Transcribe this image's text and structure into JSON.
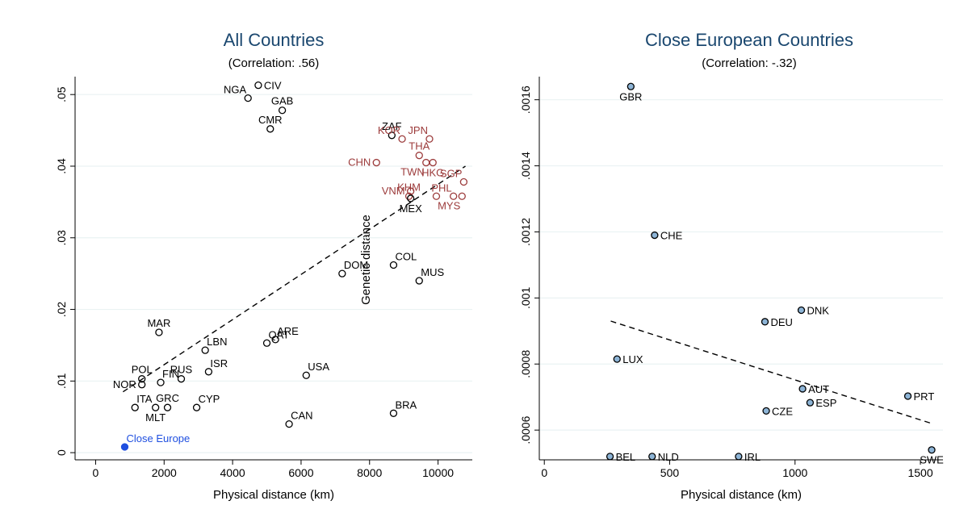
{
  "chart_data": [
    {
      "type": "scatter",
      "title": "All Countries",
      "subtitle": "(Correlation: .56)",
      "xlabel": "Physical distance (km)",
      "ylabel": "Genetic distance",
      "xlim": [
        -600,
        11000
      ],
      "ylim": [
        -0.001,
        0.0525
      ],
      "xticks": [
        "0",
        "2000",
        "4000",
        "6000",
        "8000",
        "10000"
      ],
      "xtick_values": [
        0,
        2000,
        4000,
        6000,
        8000,
        10000
      ],
      "yticks": [
        "0",
        ".01",
        ".02",
        ".03",
        ".04",
        ".05"
      ],
      "ytick_values": [
        0,
        0.01,
        0.02,
        0.03,
        0.04,
        0.05
      ],
      "grid": "horizontal",
      "colors": {
        "default": "#000000",
        "asia": "#9c3b3b",
        "highlight": "#1f4fe0"
      },
      "fit_line": {
        "x": [
          800,
          10800
        ],
        "y": [
          0.0085,
          0.04
        ]
      },
      "points": [
        {
          "label": "NGA",
          "x": 4450,
          "y": 0.0495,
          "group": "default",
          "anchor": "above-left"
        },
        {
          "label": "CIV",
          "x": 4750,
          "y": 0.0513,
          "group": "default",
          "anchor": "right"
        },
        {
          "label": "GAB",
          "x": 5450,
          "y": 0.0478,
          "group": "default",
          "anchor": "above"
        },
        {
          "label": "CMR",
          "x": 5100,
          "y": 0.0452,
          "group": "default",
          "anchor": "above"
        },
        {
          "label": "ZAF",
          "x": 8650,
          "y": 0.0443,
          "group": "default",
          "anchor": "above"
        },
        {
          "label": "KOR",
          "x": 8950,
          "y": 0.0438,
          "group": "asia",
          "anchor": "above-left"
        },
        {
          "label": "JPN",
          "x": 9750,
          "y": 0.0438,
          "group": "asia",
          "anchor": "above-left"
        },
        {
          "label": "THA",
          "x": 9450,
          "y": 0.0415,
          "group": "asia",
          "anchor": "above"
        },
        {
          "label": "CHN",
          "x": 8200,
          "y": 0.0405,
          "group": "asia",
          "anchor": "left"
        },
        {
          "label": "TWN",
          "x": 9650,
          "y": 0.0405,
          "group": "asia",
          "anchor": "below-left"
        },
        {
          "label": "HKG",
          "x": 9850,
          "y": 0.0405,
          "group": "asia",
          "anchor": "below"
        },
        {
          "label": "SGP",
          "x": 10750,
          "y": 0.0378,
          "group": "asia",
          "anchor": "above-left"
        },
        {
          "label": "VNM",
          "x": 9200,
          "y": 0.0365,
          "group": "asia",
          "anchor": "left"
        },
        {
          "label": "KHM",
          "x": 9150,
          "y": 0.0358,
          "group": "asia",
          "anchor": "above"
        },
        {
          "label": "PHL",
          "x": 10450,
          "y": 0.0358,
          "group": "asia",
          "anchor": "above-left"
        },
        {
          "label": "MYS",
          "x": 10700,
          "y": 0.0358,
          "group": "asia",
          "anchor": "below-left"
        },
        {
          "label": "MYS",
          "x": 9950,
          "y": 0.0358,
          "group": "asia",
          "anchor": "none"
        },
        {
          "label": "MEX",
          "x": 9200,
          "y": 0.0355,
          "group": "default",
          "anchor": "below"
        },
        {
          "label": "COL",
          "x": 8700,
          "y": 0.0262,
          "group": "default",
          "anchor": "above-right"
        },
        {
          "label": "MUS",
          "x": 9450,
          "y": 0.024,
          "group": "default",
          "anchor": "above-right"
        },
        {
          "label": "DOM",
          "x": 7200,
          "y": 0.025,
          "group": "default",
          "anchor": "above-right"
        },
        {
          "label": "MAR",
          "x": 1850,
          "y": 0.0168,
          "group": "default",
          "anchor": "above"
        },
        {
          "label": "ARE",
          "x": 5250,
          "y": 0.0158,
          "group": "default",
          "anchor": "above-right"
        },
        {
          "label": "QAT",
          "x": 5000,
          "y": 0.0153,
          "group": "default",
          "anchor": "above-right"
        },
        {
          "label": "LBN",
          "x": 3200,
          "y": 0.0143,
          "group": "default",
          "anchor": "above-right"
        },
        {
          "label": "ISR",
          "x": 3300,
          "y": 0.0113,
          "group": "default",
          "anchor": "above-right"
        },
        {
          "label": "RUS",
          "x": 2500,
          "y": 0.0103,
          "group": "default",
          "anchor": "above"
        },
        {
          "label": "FIN",
          "x": 1900,
          "y": 0.0098,
          "group": "default",
          "anchor": "above-right"
        },
        {
          "label": "POL",
          "x": 1350,
          "y": 0.0103,
          "group": "default",
          "anchor": "above"
        },
        {
          "label": "NOR",
          "x": 1350,
          "y": 0.0095,
          "group": "default",
          "anchor": "left"
        },
        {
          "label": "USA",
          "x": 6150,
          "y": 0.0108,
          "group": "default",
          "anchor": "above-right"
        },
        {
          "label": "ITA",
          "x": 1150,
          "y": 0.0063,
          "group": "default",
          "anchor": "above-right"
        },
        {
          "label": "GRC",
          "x": 2100,
          "y": 0.0063,
          "group": "default",
          "anchor": "above"
        },
        {
          "label": "CYP",
          "x": 2950,
          "y": 0.0063,
          "group": "default",
          "anchor": "above-right"
        },
        {
          "label": "MLT",
          "x": 1750,
          "y": 0.0063,
          "group": "default",
          "anchor": "below"
        },
        {
          "label": "BRA",
          "x": 8700,
          "y": 0.0055,
          "group": "default",
          "anchor": "above-right"
        },
        {
          "label": "CAN",
          "x": 5650,
          "y": 0.004,
          "group": "default",
          "anchor": "above-right"
        },
        {
          "label": "Close Europe",
          "x": 850,
          "y": 0.0008,
          "group": "highlight",
          "anchor": "above-right"
        }
      ]
    },
    {
      "type": "scatter",
      "title": "Close European Countries",
      "subtitle": "(Correlation: -.32)",
      "xlabel": "Physical distance (km)",
      "ylabel": "",
      "xlim": [
        -20,
        1590
      ],
      "ylim": [
        0.00051,
        0.00167
      ],
      "xticks": [
        "0",
        "500",
        "1000",
        "1500"
      ],
      "xtick_values": [
        0,
        500,
        1000,
        1500
      ],
      "yticks": [
        ".0006",
        ".0008",
        ".001",
        ".0012",
        ".0014",
        ".0016"
      ],
      "ytick_values": [
        0.0006,
        0.0008,
        0.001,
        0.0012,
        0.0014,
        0.0016
      ],
      "grid": "horizontal",
      "colors": {
        "marker_fill": "#8db4d6"
      },
      "fit_line": {
        "x": [
          265,
          1545
        ],
        "y": [
          0.00093,
          0.00062
        ]
      },
      "points": [
        {
          "label": "GBR",
          "x": 345,
          "y": 0.00164,
          "anchor": "below"
        },
        {
          "label": "CHE",
          "x": 440,
          "y": 0.00119,
          "anchor": "right"
        },
        {
          "label": "DNK",
          "x": 1025,
          "y": 0.000963,
          "anchor": "right"
        },
        {
          "label": "DEU",
          "x": 880,
          "y": 0.000928,
          "anchor": "right"
        },
        {
          "label": "LUX",
          "x": 290,
          "y": 0.000815,
          "anchor": "right"
        },
        {
          "label": "AUT",
          "x": 1030,
          "y": 0.000725,
          "anchor": "right"
        },
        {
          "label": "PRT",
          "x": 1450,
          "y": 0.000703,
          "anchor": "right"
        },
        {
          "label": "ESP",
          "x": 1060,
          "y": 0.000683,
          "anchor": "right"
        },
        {
          "label": "CZE",
          "x": 885,
          "y": 0.000658,
          "anchor": "right"
        },
        {
          "label": "SWE",
          "x": 1545,
          "y": 0.00054,
          "anchor": "below"
        },
        {
          "label": "BEL",
          "x": 262,
          "y": 0.00052,
          "anchor": "right"
        },
        {
          "label": "NLD",
          "x": 430,
          "y": 0.00052,
          "anchor": "right"
        },
        {
          "label": "IRL",
          "x": 775,
          "y": 0.00052,
          "anchor": "right"
        }
      ]
    }
  ]
}
